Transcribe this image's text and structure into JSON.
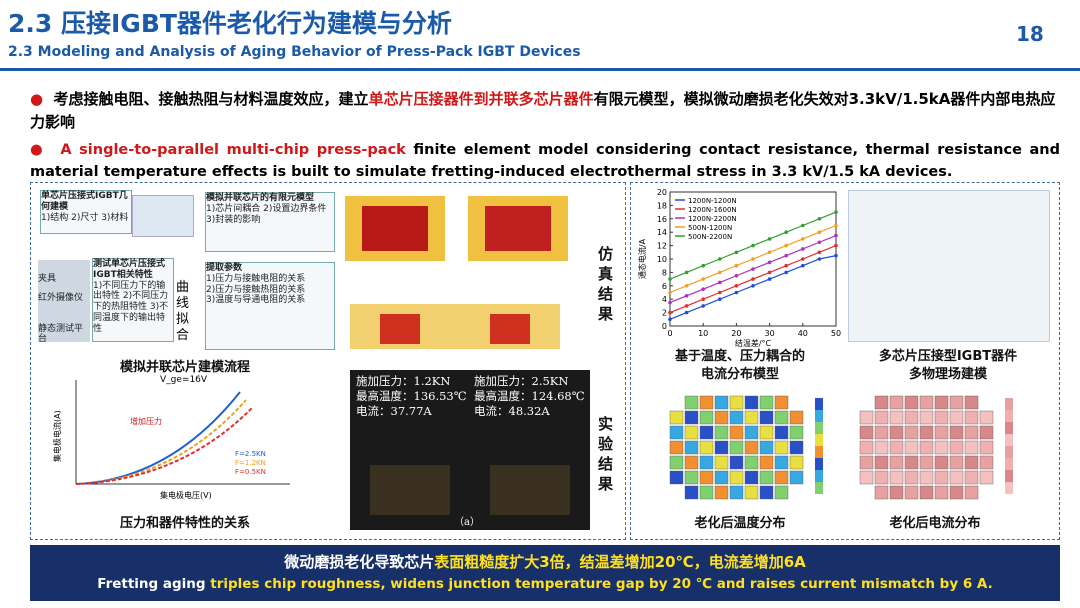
{
  "header": {
    "title": "2.3 压接IGBT器件老化行为建模与分析",
    "subtitle": "2.3 Modeling and Analysis of Aging Behavior of Press-Pack IGBT Devices",
    "page_number": "18"
  },
  "bullets": [
    {
      "parts": [
        "考虑接触电阻、接触热阻与材料温度效应，建立",
        "单芯片压接器件到并联多芯片器件",
        "有限元模型，模拟微动磨损老化失效对3.3kV/1.5kA器件内部电热应力影响"
      ]
    },
    {
      "parts": [
        "A single-to-parallel multi-chip press-pack",
        "finite element model considering contact resistance, thermal resistance and material temperature effects is built to simulate fretting-induced electrothermal stress in 3.3 kV/1.5 kA devices."
      ]
    }
  ],
  "left_panel": {
    "flow": {
      "geometry_title": "单芯片压接式IGBT几何建模",
      "geometry_items": "1)结构 2)尺寸 3)材料",
      "fem_title": "模拟并联芯片的有限元模型",
      "fem_items": "1)芯片间耦合 2)设置边界条件 3)封装的影响",
      "test_title": "测试单芯片压接式IGBT相关特性",
      "test_items": "1)不同压力下的输出特性 2)不同压力下的热阻特性 3)不同温度下的输出特性",
      "fit": "曲线拟合",
      "extract_title": "提取参数",
      "extract_items": [
        "1)压力与接触电阻的关系",
        "2)压力与接触热阻的关系",
        "3)温度与导通电阻的关系"
      ],
      "photo_labels": [
        "夹具",
        "红外摄像仪",
        "静态测试平台"
      ]
    },
    "flow_caption": "模拟并联芯片建模流程",
    "sim_label": "仿真结果",
    "exp_label": "实验结果",
    "curve": {
      "title": "V_ge=16V",
      "arrow": "增加压力",
      "legend": [
        "F=2.5KN",
        "F=1.2KN",
        "F=0.5KN"
      ],
      "xlabel": "集电极电压(V)",
      "ylabel": "集电极电流(A)"
    },
    "curve_caption": "压力和器件特性的关系",
    "experiment": {
      "left": [
        "施加压力：1.2KN",
        "最高温度：136.53℃",
        "电流：37.77A"
      ],
      "right": [
        "施加压力：2.5KN",
        "最高温度：124.68℃",
        "电流：48.32A"
      ],
      "tag": "（a）"
    }
  },
  "right_panel": {
    "line_chart": {
      "type": "line",
      "xlabel": "结温差/°C",
      "ylabel": "通态电流/A",
      "x": [
        0,
        5,
        10,
        15,
        20,
        25,
        30,
        35,
        40,
        45,
        50
      ],
      "series": [
        {
          "name": "1200N-1200N",
          "color": "#1f4fd6",
          "values": [
            1,
            2,
            3,
            4,
            5,
            6,
            7,
            8,
            9,
            10,
            10.5
          ]
        },
        {
          "name": "1200N-1600N",
          "color": "#e03030",
          "values": [
            2,
            3,
            4,
            5,
            6,
            7,
            8,
            9,
            10,
            11,
            12
          ]
        },
        {
          "name": "1200N-2200N",
          "color": "#b030c0",
          "values": [
            3.5,
            4.5,
            5.5,
            6.5,
            7.5,
            8.5,
            9.5,
            10.5,
            11.5,
            12.5,
            13.5
          ]
        },
        {
          "name": "500N-1200N",
          "color": "#f0a020",
          "values": [
            5,
            6,
            7,
            8,
            9,
            10,
            11,
            12,
            13,
            14,
            15
          ]
        },
        {
          "name": "500N-2200N",
          "color": "#30a030",
          "values": [
            7,
            8,
            9,
            10,
            11,
            12,
            13,
            14,
            15,
            16,
            17
          ]
        }
      ],
      "xlim": [
        0,
        50
      ],
      "xticks": [
        0,
        10,
        20,
        30,
        40,
        50
      ],
      "ylim": [
        0,
        20
      ],
      "yticks": [
        0,
        2,
        4,
        6,
        8,
        10,
        12,
        14,
        16,
        18,
        20
      ]
    },
    "chart_caption": [
      "基于温度、压力耦合的",
      "电流分布模型"
    ],
    "multiphysics_caption": [
      "多芯片压接型IGBT器件",
      "多物理场建模"
    ],
    "temp_caption": "老化后温度分布",
    "current_caption": "老化后电流分布"
  },
  "banner": {
    "line1": [
      "微动磨损老化导致芯片",
      "表面粗糙度扩大3倍，结温差增加20℃，电流差增加6A"
    ],
    "line2": [
      "Fretting aging",
      "triples chip roughness, widens junction temperature gap by 20 ℃ and raises current mismatch by 6 A."
    ]
  }
}
